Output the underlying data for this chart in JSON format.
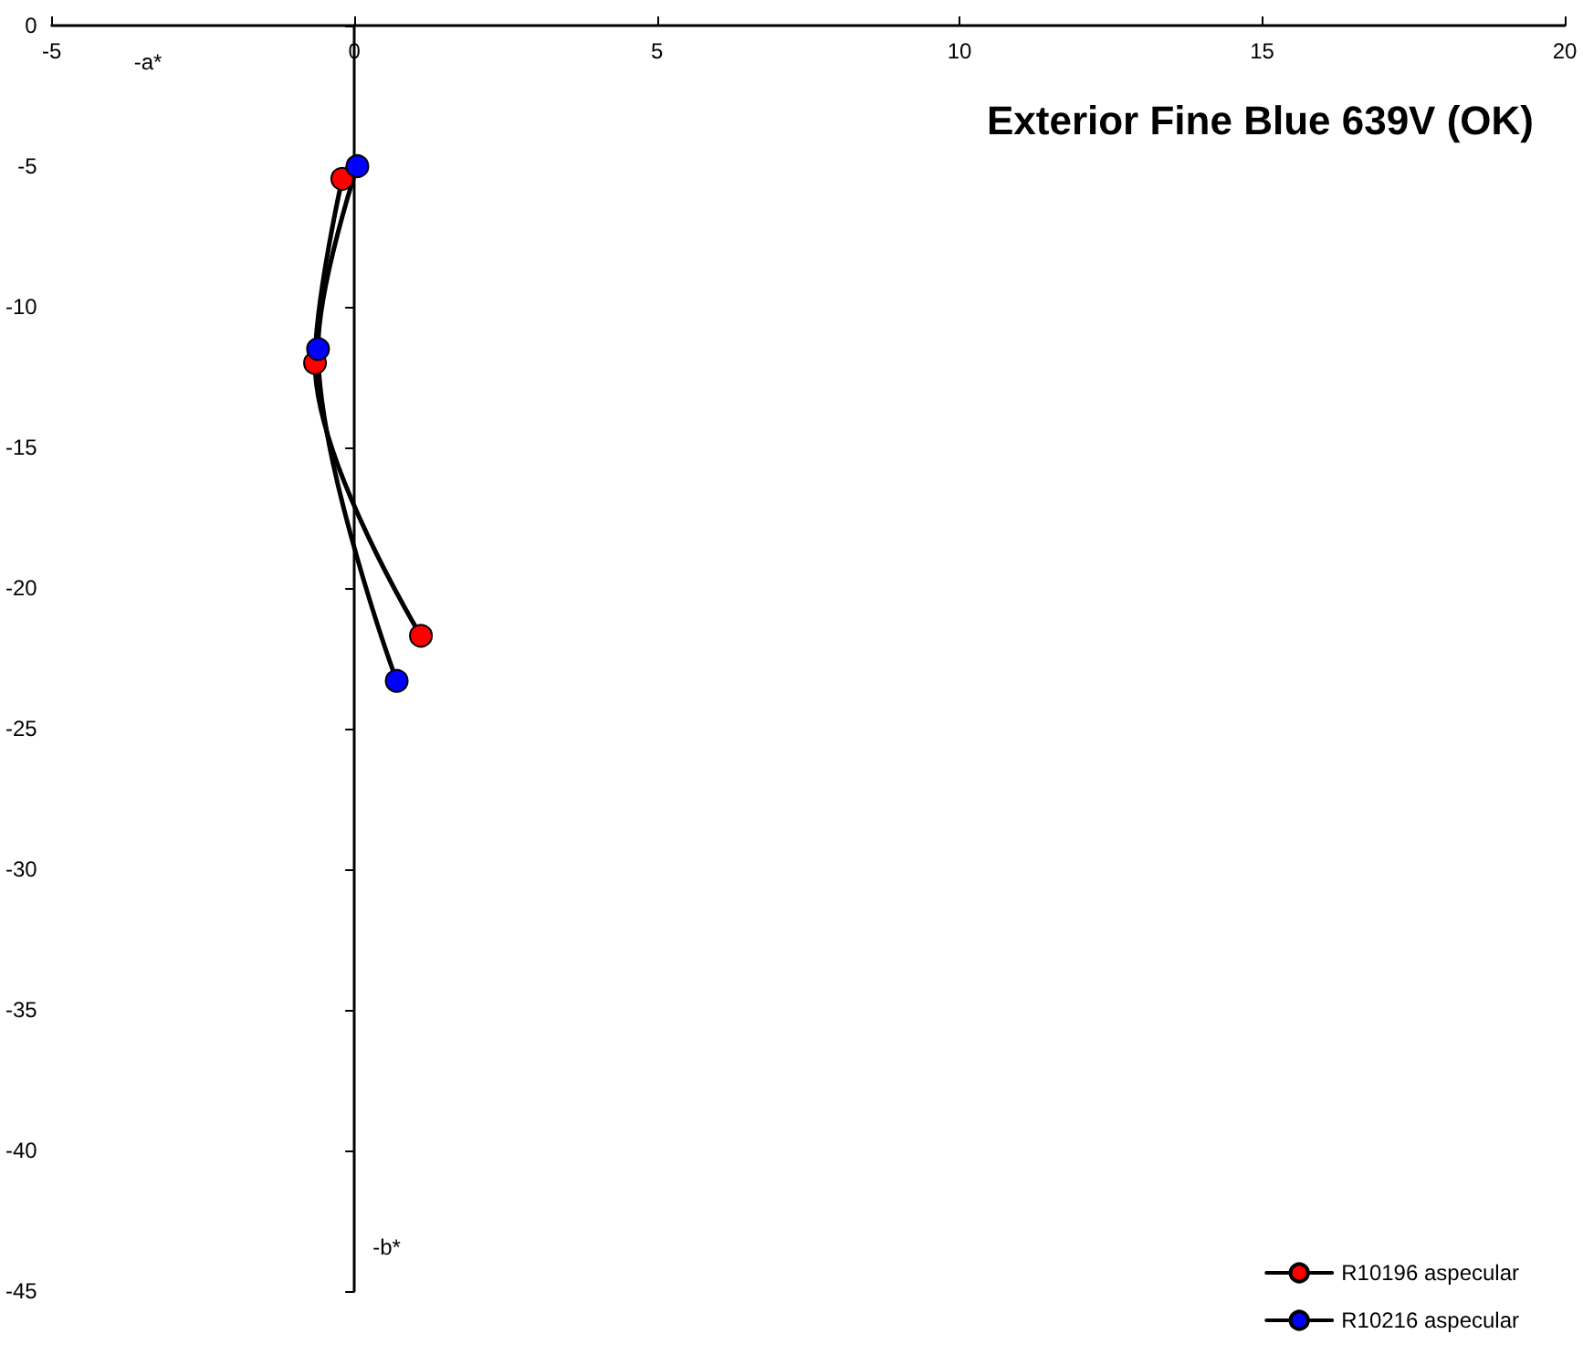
{
  "chart_data": {
    "type": "line",
    "title": "Exterior Fine Blue 639V (OK)",
    "xlabel": "-a*",
    "ylabel": "-b*",
    "series": [
      {
        "name": "R10196 aspecular",
        "color": "#ff0000",
        "x": [
          -0.2,
          -0.65,
          1.1
        ],
        "values": [
          -5.45,
          -12.0,
          -21.7
        ]
      },
      {
        "name": "R10216 aspecular",
        "color": "#0000ff",
        "x": [
          0.05,
          -0.6,
          0.7
        ],
        "values": [
          -5.0,
          -11.5,
          -23.3
        ]
      }
    ],
    "xlim": [
      -5,
      20
    ],
    "xticks": [
      -5,
      0,
      5,
      10,
      15,
      20
    ],
    "ylim": [
      -45,
      0
    ],
    "yticks": [
      0,
      -5,
      -10,
      -15,
      -20,
      -25,
      -30,
      -35,
      -40,
      -45
    ],
    "legend": "bottom right",
    "marker": "circle",
    "line_style": "solid"
  }
}
